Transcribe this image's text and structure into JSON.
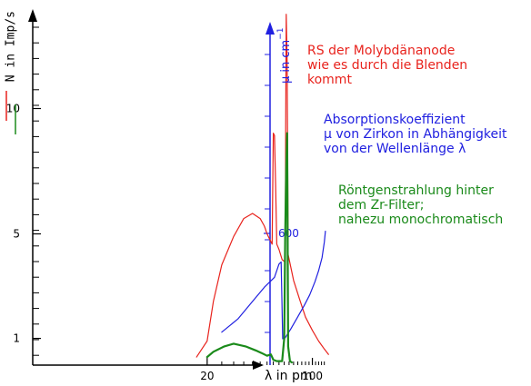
{
  "colors": {
    "red": "#e8231d",
    "blue": "#2020e0",
    "green": "#1a8a1a",
    "axis": "#000000"
  },
  "chart_data": {
    "type": "line",
    "x_axis": {
      "label": "λ in pm",
      "ticks": [
        20,
        100
      ]
    },
    "y_left": {
      "label": "N in Imp/s",
      "ticks": [
        1,
        5,
        10
      ]
    },
    "y_right": {
      "label": "μ in cm",
      "label_superscript": "−1",
      "ticks": [
        600
      ]
    },
    "annotations": {
      "red": [
        "RS der Molybdänanode",
        "wie es durch die Blenden",
        "kommt"
      ],
      "blue": [
        "Absorptionskoeffizient",
        "μ von Zirkon in Abhängigkeit",
        "von der Wellenlänge λ"
      ],
      "green": [
        "Röntgenstrahlung hinter",
        "dem Zr-Filter;",
        "nahezu monochromatisch"
      ]
    },
    "series": [
      {
        "color": "red",
        "points": [
          [
            17,
            0.3
          ],
          [
            20,
            0.9
          ],
          [
            22,
            2.4
          ],
          [
            25,
            3.8
          ],
          [
            30,
            4.9
          ],
          [
            35,
            5.6
          ],
          [
            40,
            5.8
          ],
          [
            45,
            5.6
          ],
          [
            48,
            5.3
          ],
          [
            50,
            5.0
          ],
          [
            52,
            4.8
          ],
          [
            54,
            4.6
          ],
          [
            55,
            9.0
          ],
          [
            56,
            13.5
          ],
          [
            57,
            10.5
          ],
          [
            58,
            4.6
          ],
          [
            60,
            4.4
          ],
          [
            63,
            4.0
          ],
          [
            66,
            3.9
          ],
          [
            66.5,
            14.0
          ],
          [
            67,
            21.0
          ],
          [
            68,
            18.0
          ],
          [
            69,
            4.2
          ],
          [
            75,
            3.2
          ],
          [
            82,
            2.5
          ],
          [
            90,
            1.8
          ],
          [
            100,
            1.3
          ],
          [
            110,
            0.9
          ],
          [
            120,
            0.6
          ],
          [
            128,
            0.4
          ]
        ]
      },
      {
        "color": "blue",
        "points": [
          [
            25,
            150
          ],
          [
            32,
            210
          ],
          [
            40,
            290
          ],
          [
            48,
            355
          ],
          [
            56,
            400
          ],
          [
            60,
            460
          ],
          [
            62,
            470
          ],
          [
            63.5,
            120
          ],
          [
            66,
            125
          ],
          [
            72,
            165
          ],
          [
            80,
            220
          ],
          [
            88,
            270
          ],
          [
            96,
            320
          ],
          [
            104,
            380
          ],
          [
            110,
            430
          ],
          [
            116,
            490
          ],
          [
            120,
            560
          ],
          [
            122,
            610
          ]
        ]
      },
      {
        "color": "green",
        "points": [
          [
            20,
            0.3
          ],
          [
            22,
            0.5
          ],
          [
            26,
            0.7
          ],
          [
            30,
            0.8
          ],
          [
            36,
            0.7
          ],
          [
            42,
            0.55
          ],
          [
            46,
            0.45
          ],
          [
            50,
            0.35
          ],
          [
            53,
            0.4
          ],
          [
            55,
            0.2
          ],
          [
            58,
            0.15
          ],
          [
            60,
            0.15
          ],
          [
            63,
            0.15
          ],
          [
            65,
            1.0
          ],
          [
            66,
            5.0
          ],
          [
            67,
            11.5
          ],
          [
            68,
            9.0
          ],
          [
            69,
            0.7
          ],
          [
            71,
            0.15
          ],
          [
            73,
            0.1
          ]
        ]
      }
    ]
  }
}
